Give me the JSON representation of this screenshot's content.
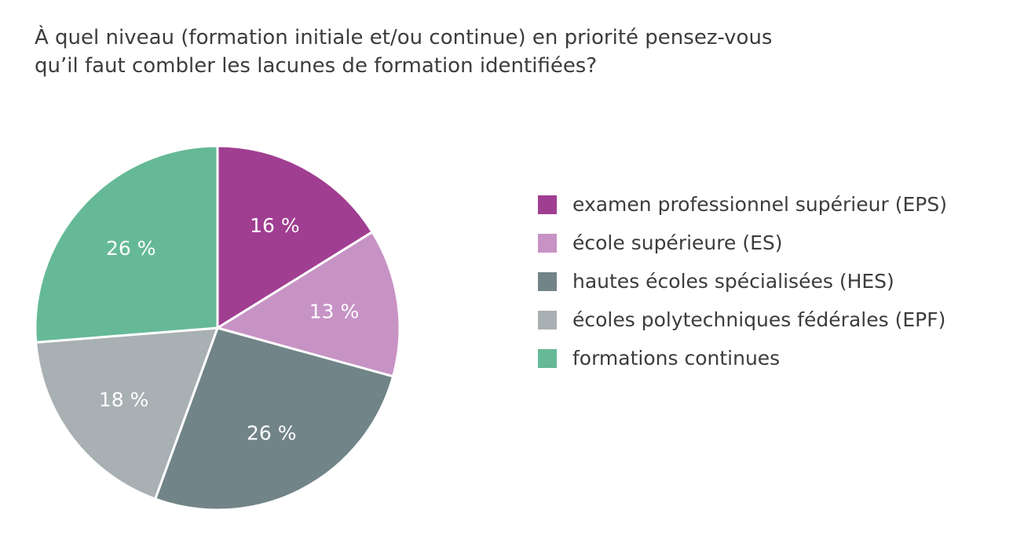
{
  "chart_data": {
    "type": "pie",
    "title_lines": [
      "À quel niveau (formation initiale et/ou continue) en priorité pensez-vous",
      "qu’il faut combler les lacunes de formation identifiées?"
    ],
    "slices": [
      {
        "name": "examen professionnel supérieur (EPS)",
        "value": 16,
        "label": "16 %",
        "color": "#a03e91"
      },
      {
        "name": "école supérieure (ES)",
        "value": 13,
        "label": "13 %",
        "color": "#c793c5"
      },
      {
        "name": "hautes écoles spécialisées (HES)",
        "value": 26,
        "label": "26 %",
        "color": "#718488"
      },
      {
        "name": "écoles polytechniques fédérales (EPF)",
        "value": 18,
        "label": "18 %",
        "color": "#a9b0b3"
      },
      {
        "name": "formations continues",
        "value": 26,
        "label": "26 %",
        "color": "#65b996"
      }
    ],
    "start": "12 o'clock",
    "direction": "clockwise",
    "legend_position": "right"
  }
}
